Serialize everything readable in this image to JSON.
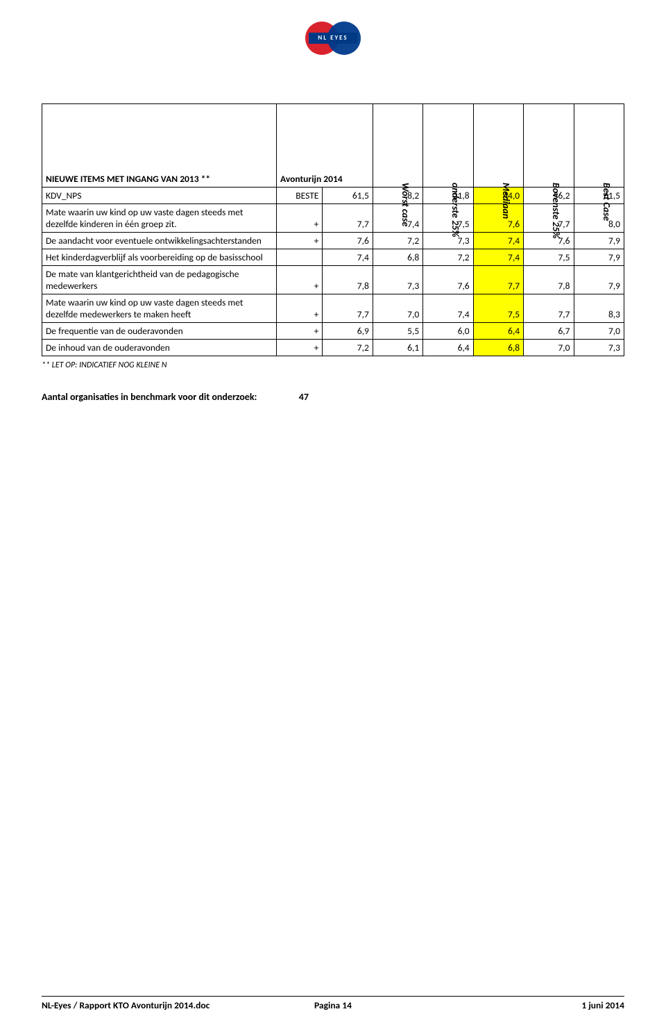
{
  "logo_text": "NL EYES",
  "table": {
    "header_left": "NIEUWE ITEMS MET INGANG VAN 2013 **",
    "header_main": "Avonturijn 2014",
    "columns_rotated": [
      "Worst case",
      "onderste 25%",
      "Mediaan",
      "Bovenste 25%",
      "Best Case"
    ],
    "rows": [
      {
        "label": "KDV_NPS",
        "tag": "BESTE",
        "vals": [
          "61,5",
          "8,2",
          "21,8",
          "44,0",
          "56,2",
          "61,5"
        ],
        "hl": [
          3
        ]
      },
      {
        "label": "Mate waarin uw kind op uw vaste dagen steeds met dezelfde kinderen in één groep zit.",
        "tag": "+",
        "vals": [
          "7,7",
          "7,4",
          "7,5",
          "7,6",
          "7,7",
          "8,0"
        ],
        "hl": [
          3
        ]
      },
      {
        "label": "De aandacht voor eventuele ontwikkelingsachterstanden",
        "tag": "+",
        "vals": [
          "7,6",
          "7,2",
          "7,3",
          "7,4",
          "7,6",
          "7,9"
        ],
        "hl": [
          3
        ]
      },
      {
        "label": "Het  kinderdagverblijf  als voorbereiding op de basisschool",
        "tag": "",
        "vals": [
          "7,4",
          "6,8",
          "7,2",
          "7,4",
          "7,5",
          "7,9"
        ],
        "hl": [
          3
        ]
      },
      {
        "label": "De mate van klantgerichtheid van de pedagogische medewerkers",
        "tag": "+",
        "vals": [
          "7,8",
          "7,3",
          "7,6",
          "7,7",
          "7,8",
          "7,9"
        ],
        "hl": [
          3
        ]
      },
      {
        "label": "Mate waarin uw kind op uw vaste dagen steeds met dezelfde medewerkers te maken heeft",
        "tag": "+",
        "vals": [
          "7,7",
          "7,0",
          "7,4",
          "7,5",
          "7,7",
          "8,3"
        ],
        "hl": [
          3
        ]
      },
      {
        "label": "De frequentie van de ouderavonden",
        "tag": "+",
        "vals": [
          "6,9",
          "5,5",
          "6,0",
          "6,4",
          "6,7",
          "7,0"
        ],
        "hl": [
          3
        ]
      },
      {
        "label": "De inhoud van de ouderavonden",
        "tag": "+",
        "vals": [
          "7,2",
          "6,1",
          "6,4",
          "6,8",
          "7,0",
          "7,3"
        ],
        "hl": [
          3
        ]
      }
    ]
  },
  "note": "** LET OP: INDICATIEF NOG KLEINE N",
  "benchmark": {
    "label": "Aantal organisaties in benchmark voor dit onderzoek:",
    "value": "47"
  },
  "footer": {
    "left": "NL-Eyes  /  Rapport KTO Avonturijn 2014.doc",
    "mid": "Pagina 14",
    "right": "1 juni 2014"
  }
}
